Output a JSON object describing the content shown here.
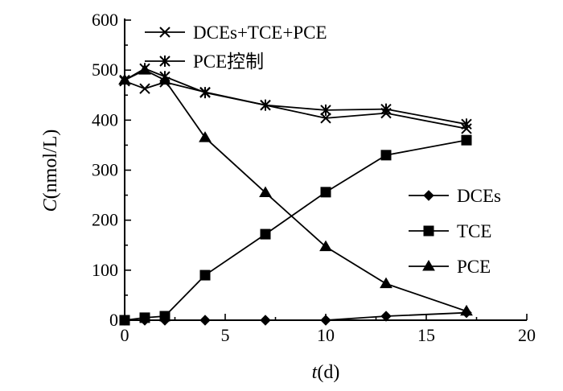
{
  "chart_data": {
    "type": "line",
    "xlabel_var": "t",
    "xlabel_unit": "(d)",
    "ylabel_var": "C",
    "ylabel_unit": "(nmol/L)",
    "xlim": [
      0,
      20
    ],
    "ylim": [
      0,
      600
    ],
    "xticks": [
      0,
      5,
      10,
      15,
      20
    ],
    "yticks": [
      0,
      100,
      200,
      300,
      400,
      500,
      600
    ],
    "grid": false,
    "legends": [
      {
        "placement": "top-left",
        "items": [
          "DCEs+TCE+PCE",
          "PCE控制"
        ]
      },
      {
        "placement": "right",
        "items": [
          "DCEs",
          "TCE",
          "PCE"
        ]
      }
    ],
    "series": [
      {
        "name": "DCEs+TCE+PCE",
        "marker": "x",
        "x": [
          0,
          1,
          2,
          4,
          7,
          10,
          13,
          17
        ],
        "y": [
          478,
          463,
          476,
          456,
          430,
          404,
          414,
          383
        ]
      },
      {
        "name": "PCE控制",
        "marker": "asterisk",
        "x": [
          0,
          1,
          2,
          4,
          7,
          10,
          13,
          17
        ],
        "y": [
          480,
          503,
          487,
          455,
          430,
          420,
          422,
          392
        ]
      },
      {
        "name": "DCEs",
        "marker": "diamond",
        "x": [
          0,
          1,
          2,
          4,
          7,
          10,
          13,
          17
        ],
        "y": [
          0,
          0,
          0,
          0,
          0,
          0,
          8,
          15
        ]
      },
      {
        "name": "TCE",
        "marker": "square",
        "x": [
          0,
          1,
          2,
          4,
          7,
          10,
          13,
          17
        ],
        "y": [
          0,
          5,
          8,
          90,
          172,
          256,
          330,
          360
        ]
      },
      {
        "name": "PCE",
        "marker": "triangle",
        "x": [
          0,
          1,
          2,
          4,
          7,
          10,
          13,
          17
        ],
        "y": [
          480,
          500,
          480,
          365,
          255,
          147,
          73,
          18
        ]
      }
    ]
  }
}
